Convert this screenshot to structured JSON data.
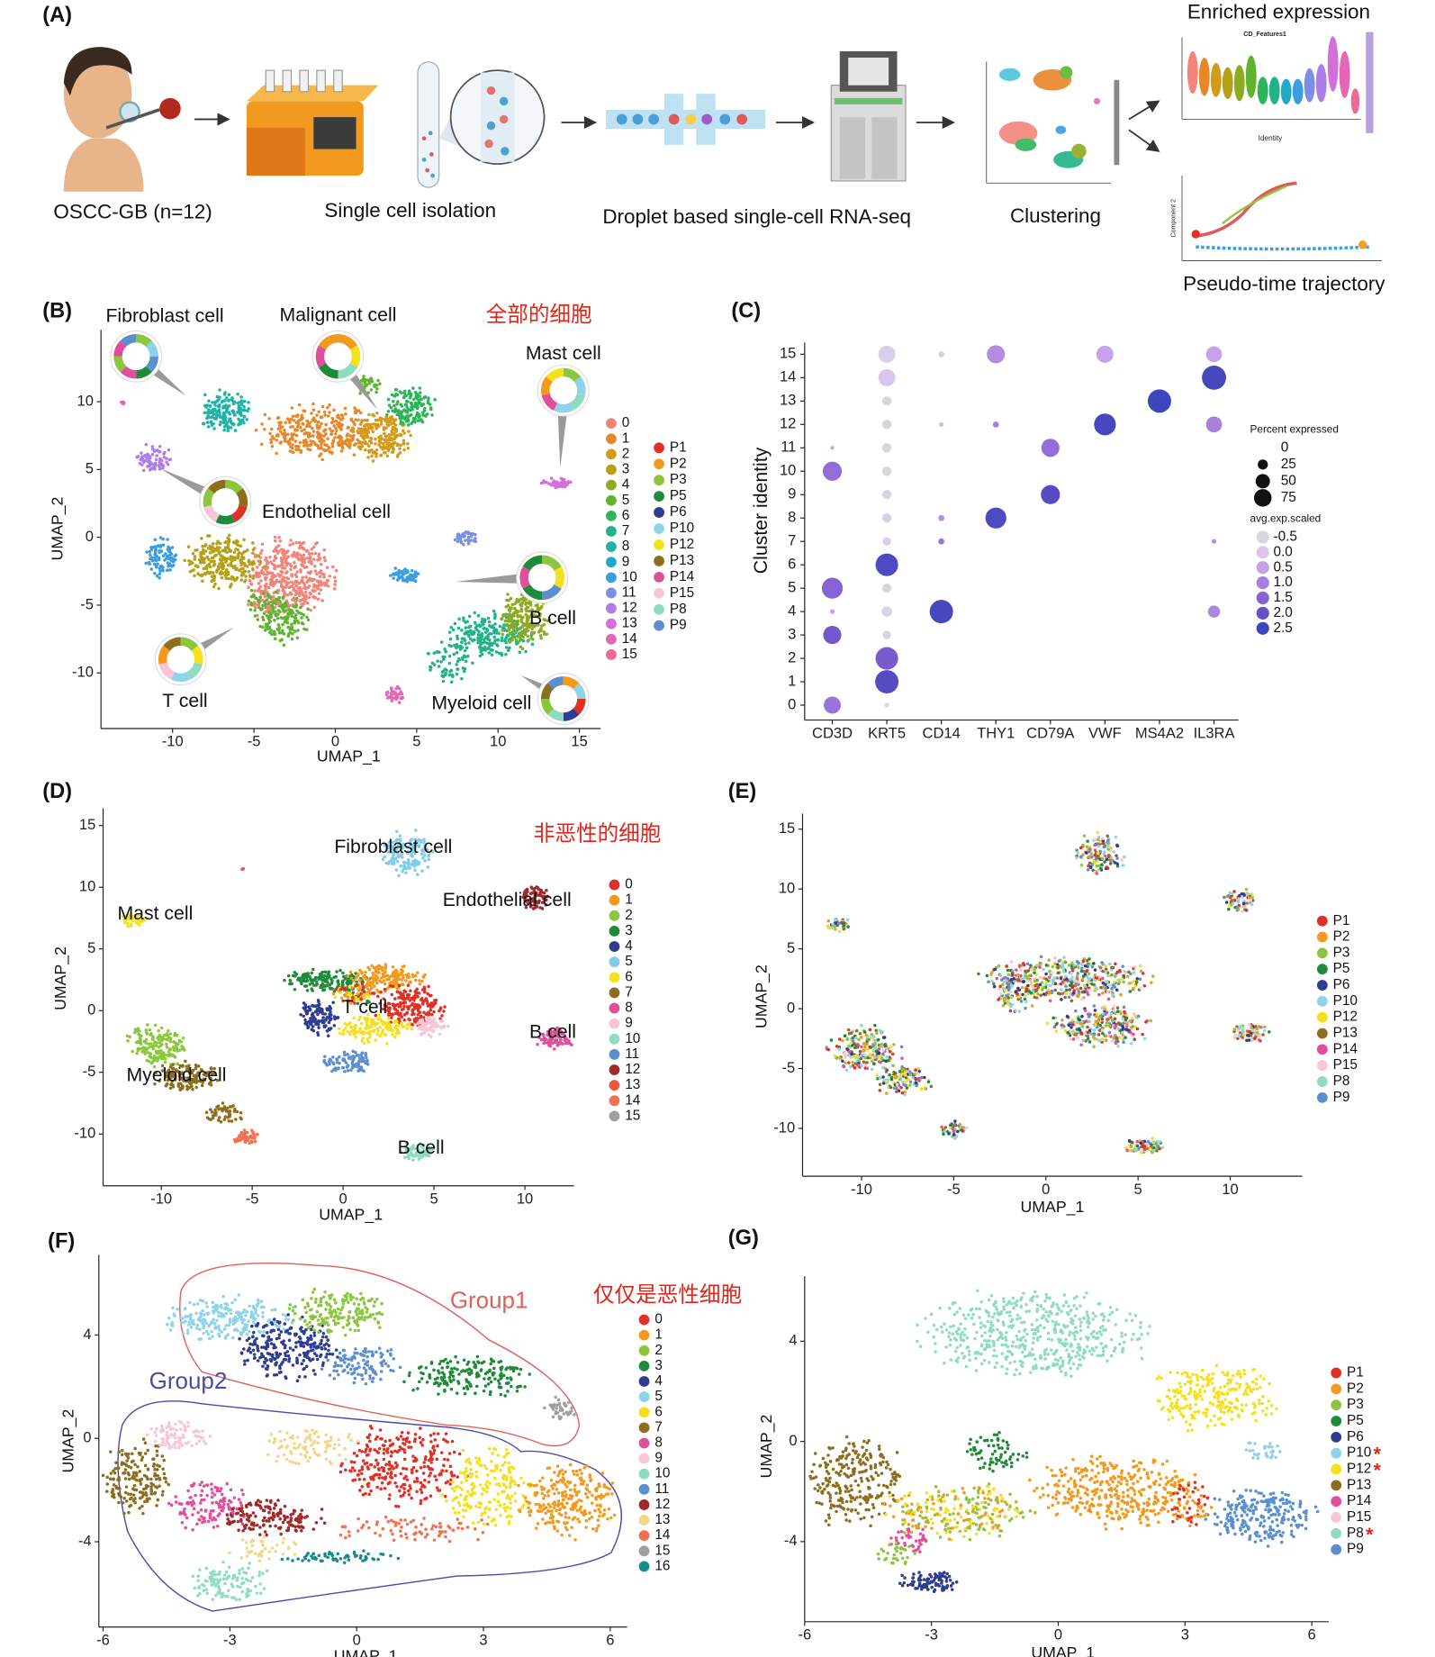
{
  "panels": {
    "A": {
      "label": "(A)",
      "steps": [
        "OSCC-GB (n=12)",
        "Single cell isolation",
        "Droplet based single-cell RNA-seq",
        "Clustering"
      ],
      "enriched": "Enriched expression",
      "violin_title": "CD_Features1",
      "violin_x_label": "Identity",
      "trajectory": "Pseudo-time trajectory",
      "trajectory_y_label": "Component 2"
    },
    "B": {
      "label": "(B)",
      "note": "全部的细胞",
      "x_label": "UMAP_1",
      "y_label": "UMAP_2",
      "xlim": [
        -14.4,
        16.3
      ],
      "ylim": [
        -14.1,
        15.3
      ],
      "xticks": [
        -10,
        -5,
        0,
        5,
        10,
        15
      ],
      "yticks": [
        -10,
        -5,
        0,
        5,
        10
      ],
      "cell_types": [
        "Fibroblast cell",
        "Malignant cell",
        "Mast cell",
        "Endothelial cell",
        "T cell",
        "B cell",
        "Myeloid cell"
      ],
      "clusters": [
        {
          "name": "0",
          "color": "#f4847a"
        },
        {
          "name": "1",
          "color": "#e8862a"
        },
        {
          "name": "2",
          "color": "#d49a1a"
        },
        {
          "name": "3",
          "color": "#b5a118"
        },
        {
          "name": "4",
          "color": "#8eaa1f"
        },
        {
          "name": "5",
          "color": "#5fb32e"
        },
        {
          "name": "6",
          "color": "#2eb55a"
        },
        {
          "name": "7",
          "color": "#20b38a"
        },
        {
          "name": "8",
          "color": "#1fb3a8"
        },
        {
          "name": "9",
          "color": "#20aac8"
        },
        {
          "name": "10",
          "color": "#3c9ee0"
        },
        {
          "name": "11",
          "color": "#7b8ee8"
        },
        {
          "name": "12",
          "color": "#ad7ee6"
        },
        {
          "name": "13",
          "color": "#d46ed8"
        },
        {
          "name": "14",
          "color": "#e466b5"
        },
        {
          "name": "15",
          "color": "#ee6a92"
        }
      ],
      "patients": [
        {
          "name": "P1",
          "color": "#e03026"
        },
        {
          "name": "P2",
          "color": "#f39a1e"
        },
        {
          "name": "P3",
          "color": "#8cc63e"
        },
        {
          "name": "P5",
          "color": "#1f8a3a"
        },
        {
          "name": "P6",
          "color": "#2e3d92"
        },
        {
          "name": "P10",
          "color": "#8fd3e8"
        },
        {
          "name": "P12",
          "color": "#f5e01c"
        },
        {
          "name": "P13",
          "color": "#8c6e1e"
        },
        {
          "name": "P14",
          "color": "#e0509a"
        },
        {
          "name": "P15",
          "color": "#f8c6d6"
        },
        {
          "name": "P8",
          "color": "#8fdcc0"
        },
        {
          "name": "P9",
          "color": "#5b8fd0"
        }
      ]
    },
    "C": {
      "label": "(C)",
      "y_label": "Cluster identity",
      "genes": [
        "CD3D",
        "KRT5",
        "CD14",
        "THY1",
        "CD79A",
        "VWF",
        "MS4A2",
        "IL3RA"
      ],
      "clusters": [
        0,
        1,
        2,
        3,
        4,
        5,
        6,
        7,
        8,
        9,
        10,
        11,
        12,
        13,
        14,
        15
      ],
      "percent_expressed": [
        [
          40,
          null,
          null,
          45,
          3,
          60,
          null,
          null,
          null,
          null,
          50,
          2,
          null,
          null,
          null,
          null
        ],
        [
          3,
          75,
          70,
          10,
          15,
          12,
          70,
          10,
          12,
          12,
          12,
          12,
          12,
          12,
          40,
          40
        ],
        [
          null,
          null,
          null,
          null,
          75,
          null,
          null,
          5,
          5,
          null,
          null,
          null,
          3,
          null,
          null,
          5
        ],
        [
          null,
          null,
          null,
          null,
          null,
          null,
          null,
          null,
          60,
          null,
          null,
          null,
          5,
          null,
          null,
          45
        ],
        [
          null,
          null,
          null,
          null,
          null,
          null,
          null,
          null,
          null,
          50,
          null,
          45,
          null,
          null,
          null,
          null
        ],
        [
          null,
          null,
          null,
          null,
          null,
          null,
          null,
          null,
          null,
          null,
          null,
          null,
          65,
          null,
          null,
          40
        ],
        [
          null,
          null,
          null,
          null,
          null,
          null,
          null,
          null,
          null,
          null,
          null,
          null,
          null,
          75,
          null,
          null
        ],
        [
          null,
          null,
          null,
          null,
          20,
          null,
          null,
          3,
          null,
          null,
          null,
          null,
          35,
          null,
          80,
          35
        ]
      ],
      "avg_exp_scaled": [
        [
          1.2,
          null,
          null,
          1.8,
          0.5,
          1.5,
          null,
          null,
          null,
          null,
          1.3,
          0.5,
          null,
          null,
          null,
          null
        ],
        [
          -0.5,
          2.2,
          1.7,
          -0.5,
          -0.5,
          -0.5,
          2.3,
          -0.3,
          -0.3,
          -0.5,
          -0.5,
          -0.5,
          -0.5,
          -0.5,
          0,
          -0.3
        ],
        [
          null,
          null,
          null,
          null,
          2.4,
          null,
          null,
          1.2,
          0.8,
          null,
          null,
          null,
          0.2,
          null,
          null,
          -0.3
        ],
        [
          null,
          null,
          null,
          null,
          null,
          null,
          null,
          null,
          2.3,
          null,
          null,
          null,
          1,
          null,
          null,
          0.8
        ],
        [
          null,
          null,
          null,
          null,
          null,
          null,
          null,
          null,
          null,
          2.2,
          null,
          1.3,
          null,
          null,
          null,
          null
        ],
        [
          null,
          null,
          null,
          null,
          null,
          null,
          null,
          null,
          null,
          null,
          null,
          null,
          2.4,
          null,
          null,
          0.5
        ],
        [
          null,
          null,
          null,
          null,
          null,
          null,
          null,
          null,
          null,
          null,
          null,
          null,
          null,
          2.5,
          null,
          null
        ],
        [
          null,
          null,
          null,
          null,
          0.9,
          null,
          null,
          0.8,
          null,
          null,
          null,
          null,
          1,
          null,
          2.4,
          0.5
        ]
      ],
      "size_title": "Percent expressed",
      "size_legend": [
        0,
        25,
        50,
        75
      ],
      "color_title": "avg.exp.scaled",
      "color_legend": [
        -0.5,
        {
          "value": 0,
          "label": "0.0"
        },
        0.5,
        {
          "value": 1,
          "label": "1.0"
        },
        1.5,
        {
          "value": 2,
          "label": "2.0"
        },
        2.5
      ],
      "color_scale": [
        "#d7d5df",
        "#dcc6f0",
        "#c6a2ea",
        "#a67fdf",
        "#8663d3",
        "#674fc7",
        "#3d46bd"
      ]
    },
    "D": {
      "label": "(D)",
      "note": "非恶性的细胞",
      "x_label": "UMAP_1",
      "y_label": "UMAP_2",
      "xlim": [
        -13.2,
        12.7
      ],
      "ylim": [
        -14.2,
        16.4
      ],
      "xticks": [
        -10,
        -5,
        0,
        5,
        10
      ],
      "yticks": [
        -10,
        -5,
        0,
        5,
        10,
        15
      ],
      "cell_types": [
        "Fibroblast cell",
        "Endothelial cell",
        "Mast cell",
        "T cell",
        "B cell",
        "Myeloid cell",
        "B cell"
      ],
      "clusters": [
        {
          "name": "0",
          "color": "#e03026"
        },
        {
          "name": "1",
          "color": "#f39a1e"
        },
        {
          "name": "2",
          "color": "#8cc63e"
        },
        {
          "name": "3",
          "color": "#1f8a3a"
        },
        {
          "name": "4",
          "color": "#2e3d92"
        },
        {
          "name": "5",
          "color": "#7fcde8"
        },
        {
          "name": "6",
          "color": "#f5e01c"
        },
        {
          "name": "7",
          "color": "#8c6e1e"
        },
        {
          "name": "8",
          "color": "#e0509a"
        },
        {
          "name": "9",
          "color": "#f8c6d6"
        },
        {
          "name": "10",
          "color": "#8fdcc0"
        },
        {
          "name": "11",
          "color": "#5b8fd0"
        },
        {
          "name": "12",
          "color": "#a02a2a"
        },
        {
          "name": "13",
          "color": "#e85a3a"
        },
        {
          "name": "14",
          "color": "#f07050"
        },
        {
          "name": "15",
          "color": "#a0a0a0"
        }
      ]
    },
    "E": {
      "label": "(E)",
      "x_label": "UMAP_1",
      "y_label": "UMAP_2",
      "xlim": [
        -13.2,
        13.9
      ],
      "ylim": [
        -14,
        16.3
      ],
      "xticks": [
        -10,
        -5,
        0,
        5,
        10
      ],
      "yticks": [
        -10,
        -5,
        0,
        5,
        10,
        15
      ],
      "patients": [
        {
          "name": "P1",
          "color": "#e03026"
        },
        {
          "name": "P2",
          "color": "#f39a1e"
        },
        {
          "name": "P3",
          "color": "#8cc63e"
        },
        {
          "name": "P5",
          "color": "#1f8a3a"
        },
        {
          "name": "P6",
          "color": "#2e3d92"
        },
        {
          "name": "P10",
          "color": "#8fd3e8"
        },
        {
          "name": "P12",
          "color": "#f5e01c"
        },
        {
          "name": "P13",
          "color": "#8c6e1e"
        },
        {
          "name": "P14",
          "color": "#e0509a"
        },
        {
          "name": "P15",
          "color": "#f8c6d6"
        },
        {
          "name": "P8",
          "color": "#8fdcc0"
        },
        {
          "name": "P9",
          "color": "#5b8fd0"
        }
      ]
    },
    "F": {
      "label": "(F)",
      "note": "仅仅是恶性细胞",
      "groups": [
        "Group1",
        "Group2"
      ],
      "x_label": "UMAP_1",
      "y_label": "UMAP_2",
      "xlim": [
        -6.1,
        6.4
      ],
      "ylim": [
        -7.3,
        7.1
      ],
      "xticks": [
        -6,
        -3,
        0,
        3,
        6
      ],
      "yticks": [
        -4,
        0,
        4
      ],
      "clusters": [
        {
          "name": "0",
          "color": "#e03026"
        },
        {
          "name": "1",
          "color": "#f39a1e"
        },
        {
          "name": "2",
          "color": "#8cc63e"
        },
        {
          "name": "3",
          "color": "#1f8a3a"
        },
        {
          "name": "4",
          "color": "#2e3d92"
        },
        {
          "name": "5",
          "color": "#8fd3e8"
        },
        {
          "name": "6",
          "color": "#f5e01c"
        },
        {
          "name": "7",
          "color": "#8c6e1e"
        },
        {
          "name": "8",
          "color": "#e0509a"
        },
        {
          "name": "9",
          "color": "#f8c6d6"
        },
        {
          "name": "10",
          "color": "#8fdcc0"
        },
        {
          "name": "11",
          "color": "#5b8fd0"
        },
        {
          "name": "12",
          "color": "#a02a2a"
        },
        {
          "name": "13",
          "color": "#f4d58a"
        },
        {
          "name": "14",
          "color": "#f07050"
        },
        {
          "name": "15",
          "color": "#a0a0a0"
        },
        {
          "name": "16",
          "color": "#1a8a8a"
        }
      ]
    },
    "G": {
      "label": "(G)",
      "x_label": "UMAP_1",
      "y_label": "UMAP_2",
      "xlim": [
        -6,
        6.4
      ],
      "ylim": [
        -7.2,
        6.6
      ],
      "xticks": [
        -6,
        -3,
        0,
        3,
        6
      ],
      "yticks": [
        -4,
        0,
        4
      ],
      "patients": [
        {
          "name": "P1",
          "color": "#e03026"
        },
        {
          "name": "P2",
          "color": "#f39a1e"
        },
        {
          "name": "P3",
          "color": "#8cc63e"
        },
        {
          "name": "P5",
          "color": "#1f8a3a"
        },
        {
          "name": "P6",
          "color": "#2e3d92"
        },
        {
          "name": "P10",
          "color": "#8fd3e8",
          "star": "*"
        },
        {
          "name": "P12",
          "color": "#f5e01c",
          "star": "*"
        },
        {
          "name": "P13",
          "color": "#8c6e1e"
        },
        {
          "name": "P14",
          "color": "#e0509a"
        },
        {
          "name": "P15",
          "color": "#f8c6d6"
        },
        {
          "name": "P8",
          "color": "#8fdcc0",
          "star": "*"
        },
        {
          "name": "P9",
          "color": "#5b8fd0"
        }
      ]
    }
  }
}
